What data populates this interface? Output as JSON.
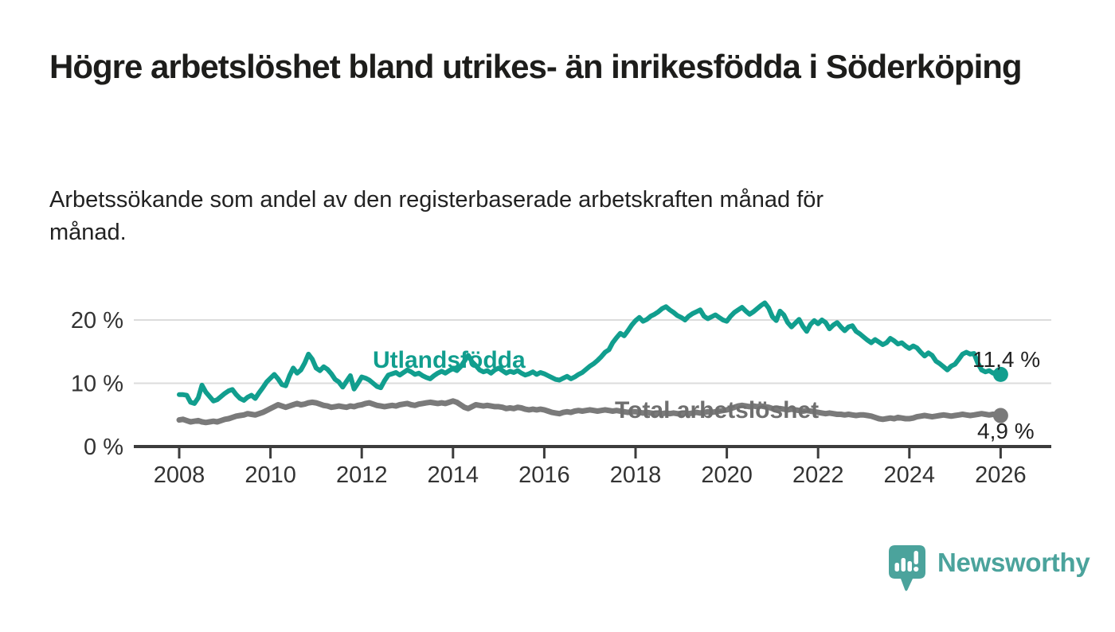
{
  "header": {
    "title": "Högre arbetslöshet bland utrikes- än inrikesfödda i Söderköping",
    "subtitle": "Arbetssökande som andel av den registerbaserade arbetskraften månad för månad."
  },
  "chart_data": {
    "type": "line",
    "unit": "%",
    "title": "Högre arbetslöshet bland utrikes- än inrikesfödda i Söderköping",
    "xlabel": "",
    "ylabel": "",
    "x_start": 2008,
    "x_step": 0.08333333,
    "x_end": 2026,
    "x_ticks": [
      2008,
      2010,
      2012,
      2014,
      2016,
      2018,
      2020,
      2022,
      2024,
      2026
    ],
    "y_ticks": [
      {
        "value": 0,
        "label": "0 %"
      },
      {
        "value": 10,
        "label": "10 %"
      },
      {
        "value": 20,
        "label": "20 %"
      }
    ],
    "ylim": [
      0,
      24
    ],
    "grid": true,
    "legend_position": "inline",
    "colors": {
      "axis": "#3c3c3c",
      "gridline": "#dcdcdc",
      "tick_text": "#333333",
      "value_label_text": "#222222"
    },
    "series": [
      {
        "name": "Utlandsfödda",
        "inline_label": "Utlandsfödda",
        "end_label": "11,4 %",
        "end_value": 11.4,
        "color": "#119e8e",
        "label_color": "#119e8e",
        "values": [
          8.2,
          8.2,
          8.1,
          7.0,
          6.8,
          7.7,
          9.7,
          8.6,
          7.9,
          7.2,
          7.4,
          7.9,
          8.4,
          8.8,
          9.0,
          8.2,
          7.6,
          7.3,
          7.8,
          8.1,
          7.6,
          8.5,
          9.3,
          10.2,
          10.8,
          11.4,
          10.7,
          9.8,
          9.6,
          11.2,
          12.4,
          11.6,
          12.1,
          13.2,
          14.6,
          13.8,
          12.4,
          12.0,
          12.6,
          12.2,
          11.5,
          10.6,
          10.2,
          9.4,
          10.3,
          11.2,
          9.1,
          10.0,
          11.0,
          10.8,
          10.5,
          10.0,
          9.5,
          9.3,
          10.4,
          11.3,
          11.5,
          11.7,
          11.3,
          11.7,
          12.1,
          11.8,
          11.4,
          11.6,
          11.2,
          10.9,
          10.7,
          11.2,
          11.6,
          11.9,
          11.6,
          12.0,
          12.3,
          12.0,
          12.6,
          13.5,
          14.4,
          13.4,
          12.8,
          12.1,
          11.8,
          12.0,
          11.6,
          12.1,
          12.4,
          12.0,
          11.6,
          11.9,
          11.7,
          12.0,
          11.6,
          11.3,
          11.5,
          11.8,
          11.4,
          11.7,
          11.5,
          11.2,
          10.9,
          10.6,
          10.5,
          10.8,
          11.1,
          10.7,
          11.0,
          11.4,
          11.7,
          12.2,
          12.7,
          13.1,
          13.6,
          14.2,
          14.9,
          15.3,
          16.4,
          17.2,
          17.9,
          17.5,
          18.3,
          19.2,
          19.9,
          20.4,
          19.8,
          20.1,
          20.6,
          20.9,
          21.3,
          21.8,
          22.1,
          21.6,
          21.2,
          20.7,
          20.4,
          20.0,
          20.6,
          21.0,
          21.3,
          21.6,
          20.6,
          20.2,
          20.5,
          20.8,
          20.4,
          20.0,
          19.8,
          20.6,
          21.2,
          21.6,
          22.0,
          21.4,
          20.9,
          21.3,
          21.8,
          22.3,
          22.7,
          21.9,
          20.5,
          19.9,
          21.4,
          20.8,
          19.6,
          18.9,
          19.5,
          20.1,
          19.0,
          18.2,
          19.3,
          19.9,
          19.4,
          20.0,
          19.6,
          18.6,
          19.2,
          19.6,
          18.9,
          18.3,
          18.9,
          19.1,
          18.2,
          17.8,
          17.3,
          16.8,
          16.4,
          16.9,
          16.5,
          16.1,
          16.4,
          17.1,
          16.7,
          16.2,
          16.4,
          15.9,
          15.5,
          15.9,
          15.6,
          14.9,
          14.3,
          14.8,
          14.4,
          13.5,
          13.1,
          12.6,
          12.1,
          12.7,
          13.0,
          13.8,
          14.6,
          14.9,
          14.6,
          14.7,
          13.2,
          12.1,
          11.8,
          12.0,
          11.6,
          11.8,
          11.4
        ]
      },
      {
        "name": "Total arbetslöshet",
        "inline_label": "Total arbetslöshet",
        "end_label": "4,9 %",
        "end_value": 4.9,
        "color": "#7a7a7a",
        "label_color": "#6f6f6f",
        "values": [
          4.2,
          4.3,
          4.1,
          3.9,
          4.0,
          4.1,
          3.9,
          3.8,
          3.9,
          4.0,
          3.9,
          4.1,
          4.3,
          4.4,
          4.6,
          4.8,
          4.9,
          5.0,
          5.2,
          5.1,
          5.0,
          5.2,
          5.4,
          5.7,
          6.0,
          6.3,
          6.6,
          6.4,
          6.2,
          6.4,
          6.6,
          6.8,
          6.6,
          6.7,
          6.9,
          7.0,
          6.9,
          6.7,
          6.5,
          6.4,
          6.2,
          6.3,
          6.4,
          6.3,
          6.2,
          6.4,
          6.3,
          6.5,
          6.6,
          6.8,
          6.9,
          6.7,
          6.5,
          6.4,
          6.3,
          6.4,
          6.5,
          6.4,
          6.6,
          6.7,
          6.8,
          6.6,
          6.5,
          6.7,
          6.8,
          6.9,
          7.0,
          6.9,
          6.8,
          6.9,
          6.8,
          7.0,
          7.2,
          7.0,
          6.6,
          6.2,
          6.0,
          6.3,
          6.6,
          6.5,
          6.4,
          6.5,
          6.4,
          6.3,
          6.3,
          6.2,
          6.0,
          6.1,
          6.0,
          6.2,
          6.1,
          5.9,
          5.8,
          5.9,
          5.8,
          5.9,
          5.8,
          5.6,
          5.4,
          5.3,
          5.2,
          5.4,
          5.5,
          5.4,
          5.6,
          5.7,
          5.6,
          5.7,
          5.8,
          5.7,
          5.6,
          5.7,
          5.8,
          5.7,
          5.6,
          5.7,
          5.6,
          5.5,
          5.4,
          5.5,
          5.5,
          5.4,
          5.3,
          5.4,
          5.3,
          5.2,
          5.3,
          5.2,
          5.3,
          5.2,
          5.3,
          5.2,
          5.2,
          5.3,
          5.2,
          5.3,
          5.4,
          5.3,
          5.4,
          5.5,
          5.4,
          5.5,
          5.6,
          5.7,
          5.8,
          6.0,
          6.2,
          6.4,
          6.5,
          6.4,
          6.3,
          6.4,
          6.3,
          6.4,
          6.3,
          6.2,
          6.0,
          5.9,
          6.0,
          5.9,
          5.8,
          5.9,
          5.8,
          5.7,
          5.6,
          5.7,
          5.6,
          5.5,
          5.4,
          5.3,
          5.2,
          5.3,
          5.2,
          5.1,
          5.1,
          5.0,
          5.1,
          5.0,
          4.9,
          5.0,
          5.0,
          4.9,
          4.8,
          4.6,
          4.4,
          4.3,
          4.4,
          4.5,
          4.4,
          4.6,
          4.5,
          4.4,
          4.4,
          4.5,
          4.7,
          4.8,
          4.9,
          4.8,
          4.7,
          4.8,
          4.9,
          5.0,
          4.9,
          4.8,
          4.9,
          5.0,
          5.1,
          5.0,
          4.9,
          5.0,
          5.1,
          5.2,
          5.1,
          5.0,
          5.1,
          5.0,
          4.9
        ]
      }
    ]
  },
  "branding": {
    "logo_text": "Newsworthy",
    "logo_color": "#4ba39c",
    "logo_icon": "bar-chart-speech-bubble"
  }
}
